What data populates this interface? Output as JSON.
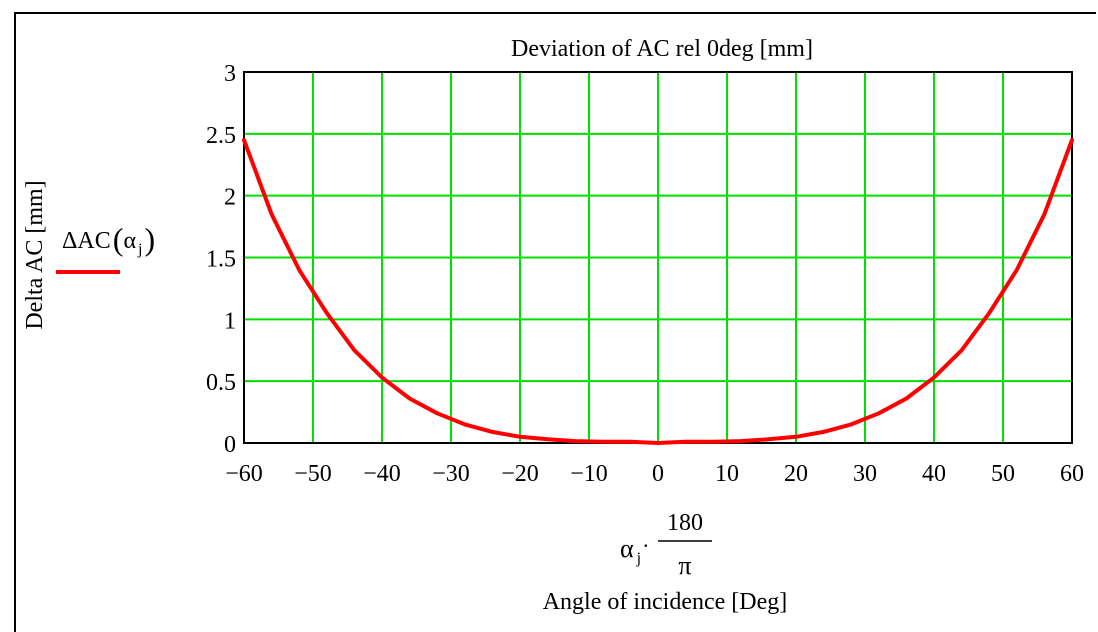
{
  "chart_data": {
    "type": "line",
    "title": "Deviation of AC rel 0deg [mm]",
    "ylabel": "Delta AC [mm]",
    "xlabel": "Angle of incidence [Deg]",
    "x_expression": {
      "var": "α",
      "sub": "j",
      "numerator": "180",
      "denominator": "π"
    },
    "legend": {
      "name": "ΔAC",
      "arg": "α",
      "sub": "j",
      "color": "#ff0000",
      "placement": "left"
    },
    "xlim": [
      -60,
      60
    ],
    "ylim": [
      0,
      3
    ],
    "x_ticks": [
      -60,
      -50,
      -40,
      -30,
      -20,
      -10,
      0,
      10,
      20,
      30,
      40,
      50,
      60
    ],
    "x_tick_labels": [
      "−60",
      "−50",
      "−40",
      "−30",
      "−20",
      "−10",
      "0",
      "10",
      "20",
      "30",
      "40",
      "50",
      "60"
    ],
    "y_ticks": [
      0,
      0.5,
      1,
      1.5,
      2,
      2.5,
      3
    ],
    "y_tick_labels": [
      "0",
      "0.5",
      "1",
      "1.5",
      "2",
      "2.5",
      "3"
    ],
    "grid": true,
    "grid_color": "#00e000",
    "series": [
      {
        "color": "#ff0000",
        "x": [
          -60,
          -56,
          -52,
          -48,
          -44,
          -40,
          -36,
          -32,
          -28,
          -24,
          -20,
          -16,
          -12,
          -8,
          -4,
          0,
          4,
          8,
          12,
          16,
          20,
          24,
          28,
          32,
          36,
          40,
          44,
          48,
          52,
          56,
          60
        ],
        "y": [
          2.45,
          1.85,
          1.4,
          1.05,
          0.75,
          0.53,
          0.36,
          0.24,
          0.15,
          0.09,
          0.05,
          0.03,
          0.015,
          0.01,
          0.01,
          0.0,
          0.01,
          0.01,
          0.015,
          0.03,
          0.05,
          0.09,
          0.15,
          0.24,
          0.36,
          0.53,
          0.75,
          1.05,
          1.4,
          1.85,
          2.45
        ]
      }
    ]
  }
}
